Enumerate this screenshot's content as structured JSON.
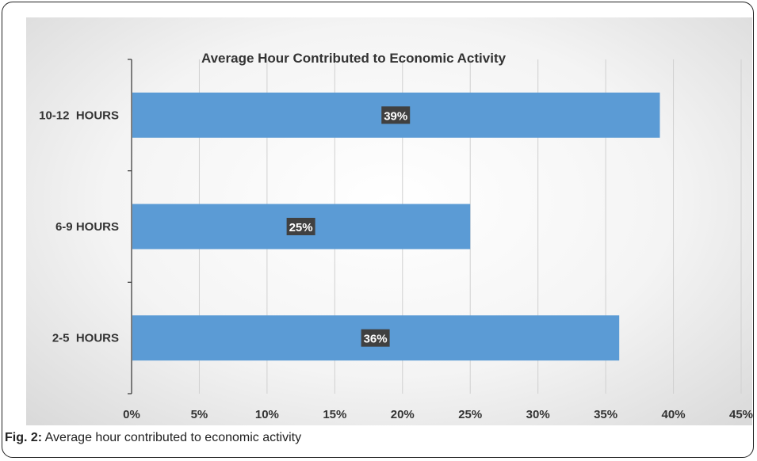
{
  "chart_data": {
    "type": "bar",
    "orientation": "horizontal",
    "title": "Average Hour Contributed to Economic Activity",
    "categories": [
      "10-12  HOURS",
      "6-9 HOURS",
      "2-5  HOURS"
    ],
    "values": [
      39,
      25,
      36
    ],
    "value_labels": [
      "39%",
      "25%",
      "36%"
    ],
    "xlim": [
      0,
      45
    ],
    "x_ticks": [
      "0%",
      "5%",
      "10%",
      "15%",
      "20%",
      "25%",
      "30%",
      "35%",
      "40%",
      "45%"
    ],
    "x_unit": "%",
    "grid": true,
    "bar_color": "#5b9bd5",
    "data_label_bg": "#404040",
    "data_label_color": "#ffffff"
  },
  "caption": {
    "label": "Fig. 2:",
    "text": "Average hour contributed to economic activity"
  }
}
